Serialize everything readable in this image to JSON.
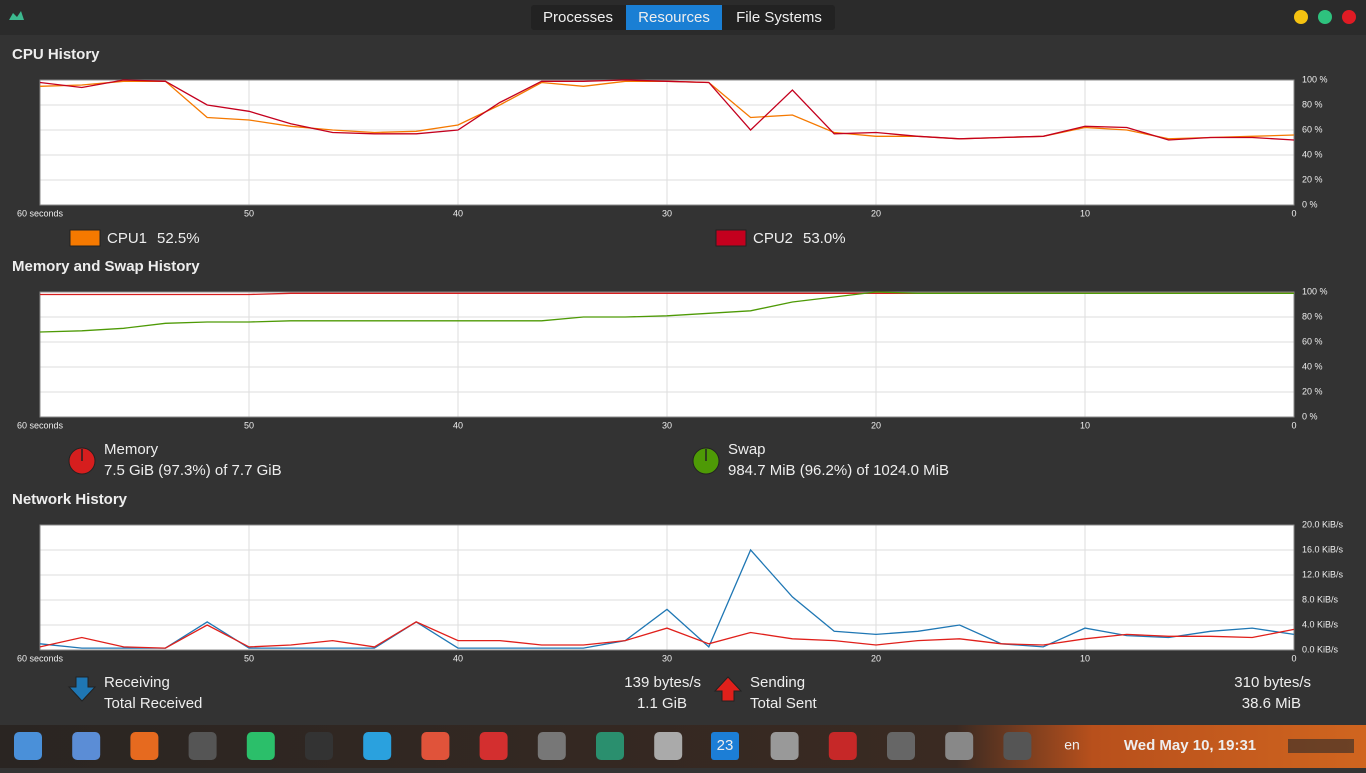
{
  "tabs": [
    "Processes",
    "Resources",
    "File Systems"
  ],
  "chart_data": [
    {
      "type": "line",
      "title": "CPU History",
      "x": [
        60,
        58,
        56,
        54,
        52,
        50,
        48,
        46,
        44,
        42,
        40,
        38,
        36,
        34,
        32,
        30,
        28,
        26,
        24,
        22,
        20,
        18,
        16,
        14,
        12,
        10,
        8,
        6,
        4,
        2,
        0
      ],
      "xlim": [
        60,
        0
      ],
      "xticks": [
        {
          "value": 60,
          "label": "60 seconds"
        },
        50,
        40,
        30,
        20,
        10,
        0
      ],
      "ylim": [
        0,
        100
      ],
      "yticks": [
        {
          "value": 0,
          "label": "0 %"
        },
        {
          "value": 20,
          "label": "20 %"
        },
        {
          "value": 40,
          "label": "40 %"
        },
        {
          "value": 60,
          "label": "60 %"
        },
        {
          "value": 80,
          "label": "80 %"
        },
        {
          "value": 100,
          "label": "100 %"
        }
      ],
      "grid": true,
      "series": [
        {
          "name": "CPU1",
          "legend_value": "52.5%",
          "color": "#f57900",
          "values": [
            95,
            96,
            99,
            99,
            70,
            68,
            63,
            60,
            58,
            59,
            64,
            80,
            98,
            95,
            99,
            99,
            98,
            70,
            72,
            58,
            55,
            55,
            53,
            54,
            55,
            62,
            60,
            53,
            54,
            55,
            56
          ]
        },
        {
          "name": "CPU2",
          "legend_value": "53.0%",
          "color": "#c4001e",
          "values": [
            98,
            94,
            100,
            99,
            80,
            75,
            65,
            58,
            57,
            57,
            60,
            82,
            99,
            99,
            100,
            99,
            98,
            60,
            92,
            57,
            58,
            55,
            53,
            54,
            55,
            63,
            62,
            52,
            54,
            54,
            52
          ]
        }
      ]
    },
    {
      "type": "line",
      "title": "Memory and Swap History",
      "x": [
        60,
        58,
        56,
        54,
        52,
        50,
        48,
        46,
        44,
        42,
        40,
        38,
        36,
        34,
        32,
        30,
        28,
        26,
        24,
        22,
        20,
        18,
        16,
        14,
        12,
        10,
        8,
        6,
        4,
        2,
        0
      ],
      "xlim": [
        60,
        0
      ],
      "xticks": [
        {
          "value": 60,
          "label": "60 seconds"
        },
        50,
        40,
        30,
        20,
        10,
        0
      ],
      "ylim": [
        0,
        100
      ],
      "yticks": [
        {
          "value": 0,
          "label": "0 %"
        },
        {
          "value": 20,
          "label": "20 %"
        },
        {
          "value": 40,
          "label": "40 %"
        },
        {
          "value": 60,
          "label": "60 %"
        },
        {
          "value": 80,
          "label": "80 %"
        },
        {
          "value": 100,
          "label": "100 %"
        }
      ],
      "grid": true,
      "series": [
        {
          "name": "Memory",
          "detail": "7.5 GiB (97.3%) of 7.7 GiB",
          "color": "#d61e1e",
          "values": [
            98,
            98,
            98,
            98,
            98,
            98,
            99,
            99,
            99,
            99,
            99,
            99,
            99,
            99,
            99,
            99,
            99,
            99,
            99,
            99,
            99,
            99,
            99,
            99,
            99,
            99,
            99,
            99,
            99,
            99,
            99
          ]
        },
        {
          "name": "Swap",
          "detail": "984.7 MiB (96.2%) of 1024.0 MiB",
          "color": "#4e9a06",
          "values": [
            68,
            69,
            71,
            75,
            76,
            76,
            77,
            77,
            77,
            77,
            77,
            77,
            77,
            80,
            80,
            81,
            83,
            85,
            92,
            96,
            100,
            99,
            99,
            99,
            99,
            99,
            99,
            99,
            99,
            99,
            99
          ]
        }
      ]
    },
    {
      "type": "line",
      "title": "Network History",
      "x": [
        60,
        58,
        56,
        54,
        52,
        50,
        48,
        46,
        44,
        42,
        40,
        38,
        36,
        34,
        32,
        30,
        28,
        26,
        24,
        22,
        20,
        18,
        16,
        14,
        12,
        10,
        8,
        6,
        4,
        2,
        0
      ],
      "xlim": [
        60,
        0
      ],
      "xticks": [
        {
          "value": 60,
          "label": "60 seconds"
        },
        50,
        40,
        30,
        20,
        10,
        0
      ],
      "ylim": [
        0,
        20
      ],
      "yticks": [
        {
          "value": 0,
          "label": "0.0 KiB/s"
        },
        {
          "value": 4,
          "label": "4.0 KiB/s"
        },
        {
          "value": 8,
          "label": "8.0 KiB/s"
        },
        {
          "value": 12,
          "label": "12.0 KiB/s"
        },
        {
          "value": 16,
          "label": "16.0 KiB/s"
        },
        {
          "value": 20,
          "label": "20.0 KiB/s"
        }
      ],
      "grid": true,
      "series": [
        {
          "name": "Receiving",
          "rate": "139 bytes/s",
          "total_label": "Total Received",
          "total": "1.1 GiB",
          "color": "#1f77b4",
          "values": [
            1,
            0.3,
            0.3,
            0.3,
            4.5,
            0.3,
            0.3,
            0.3,
            0.3,
            4.5,
            0.3,
            0.3,
            0.3,
            0.3,
            1.5,
            6.5,
            0.5,
            16,
            8.5,
            3,
            2.5,
            3,
            4,
            1,
            0.5,
            3.5,
            2.3,
            2,
            3,
            3.5,
            2.5
          ]
        },
        {
          "name": "Sending",
          "rate": "310 bytes/s",
          "total_label": "Total Sent",
          "total": "38.6 MiB",
          "color": "#e0201b",
          "values": [
            0.5,
            2,
            0.5,
            0.3,
            4,
            0.5,
            0.8,
            1.5,
            0.5,
            4.5,
            1.5,
            1.5,
            0.8,
            0.8,
            1.5,
            3.5,
            1,
            2.8,
            1.8,
            1.5,
            0.8,
            1.5,
            1.8,
            1,
            0.8,
            1.8,
            2.5,
            2.2,
            2.2,
            2,
            3.3
          ]
        }
      ]
    }
  ],
  "taskbar": {
    "calendar_day": "23",
    "keyboard": "en",
    "clock": "Wed May 10, 19:31"
  }
}
